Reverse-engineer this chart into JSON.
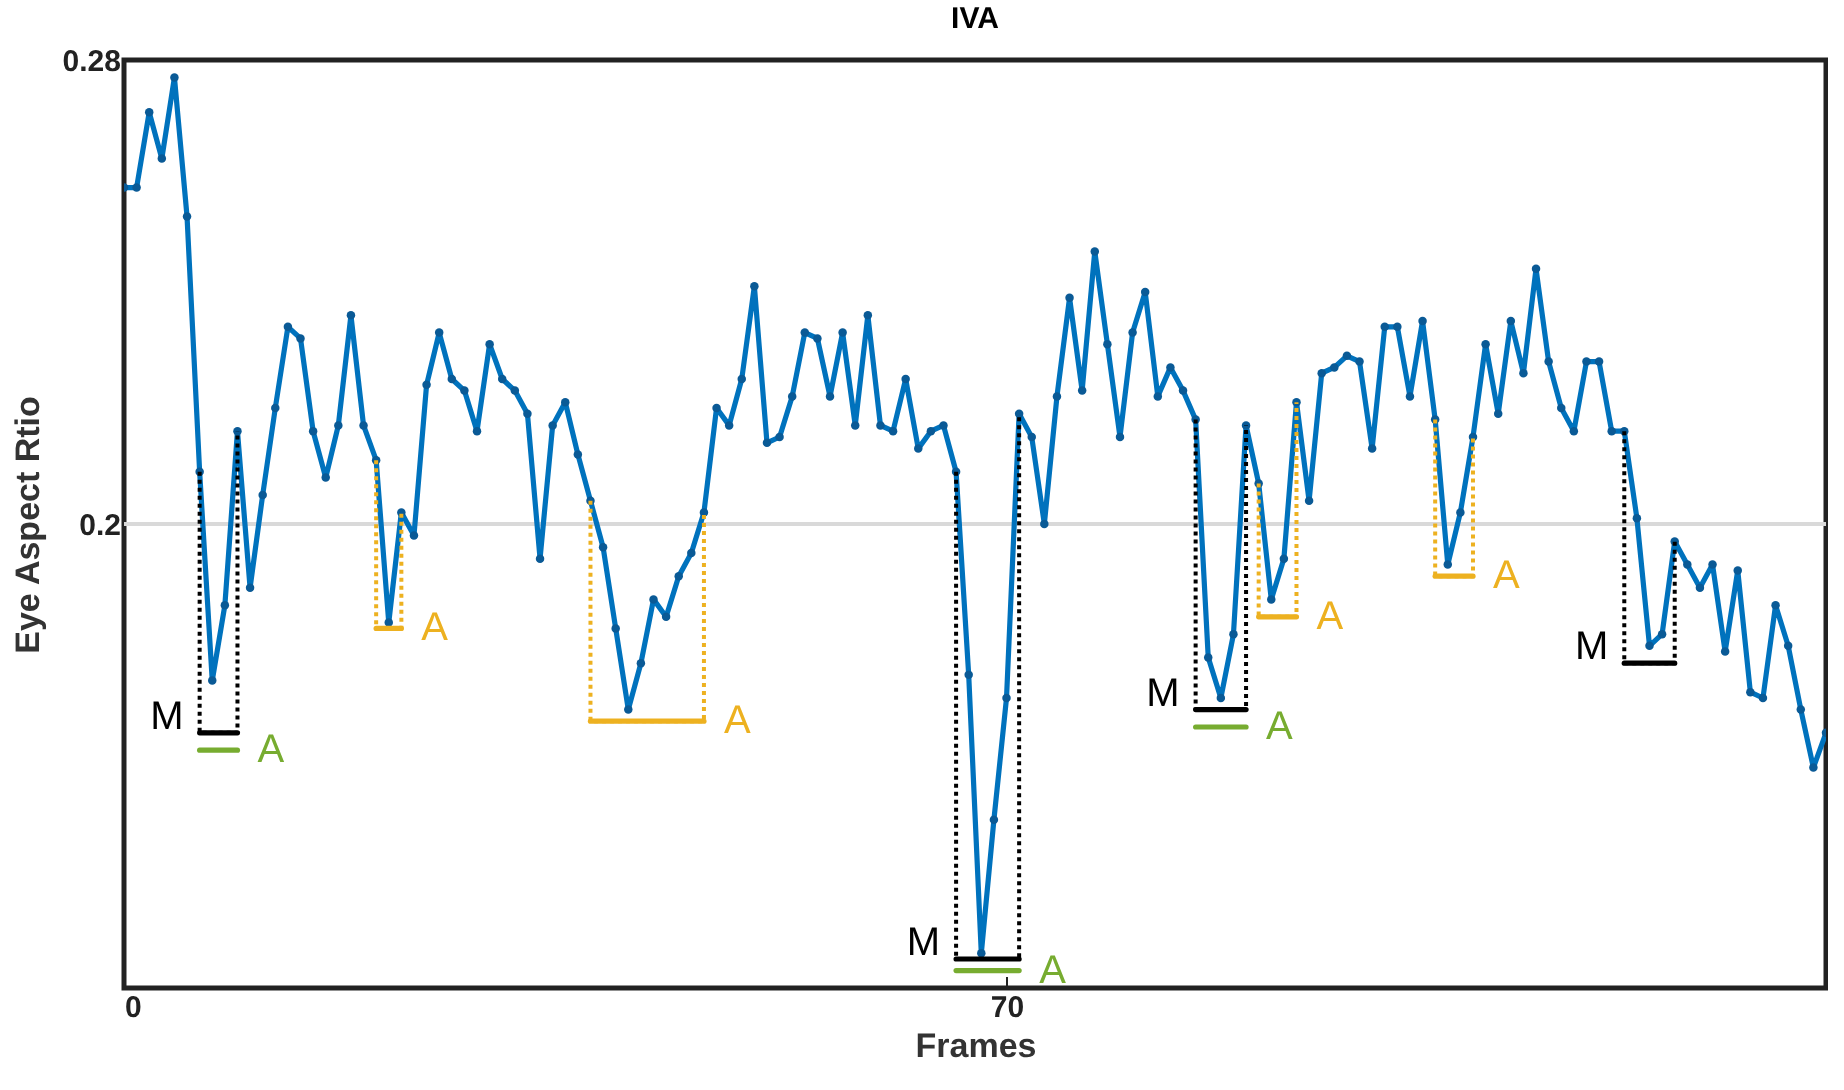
{
  "chart_data": {
    "type": "line",
    "title": "IVA",
    "xlabel": "Frames",
    "ylabel": "Eye Aspect Rtio",
    "x": [
      0,
      1,
      2,
      3,
      4,
      5,
      6,
      7,
      8,
      9,
      10,
      11,
      12,
      13,
      14,
      15,
      16,
      17,
      18,
      19,
      20,
      21,
      22,
      23,
      24,
      25,
      26,
      27,
      28,
      29,
      30,
      31,
      32,
      33,
      34,
      35,
      36,
      37,
      38,
      39,
      40,
      41,
      42,
      43,
      44,
      45,
      46,
      47,
      48,
      49,
      50,
      51,
      52,
      53,
      54,
      55,
      56,
      57,
      58,
      59,
      60,
      61,
      62,
      63,
      64,
      65,
      66,
      67,
      68,
      69,
      70,
      71,
      72,
      73,
      74,
      75,
      76,
      77,
      78,
      79,
      80,
      81,
      82,
      83,
      84,
      85,
      86,
      87,
      88,
      89,
      90,
      91,
      92,
      93,
      94,
      95,
      96,
      97,
      98,
      99,
      100,
      101,
      102,
      103,
      104,
      105,
      106,
      107,
      108,
      109,
      110,
      111,
      112,
      113,
      114,
      115,
      116,
      117,
      118,
      119,
      120,
      121,
      122,
      123,
      124,
      125,
      126,
      127,
      128,
      129,
      130,
      131,
      132,
      133,
      134,
      135
    ],
    "series": [
      {
        "color": "#0072bd",
        "values": [
          0.258,
          0.258,
          0.271,
          0.263,
          0.277,
          0.253,
          0.209,
          0.173,
          0.186,
          0.216,
          0.189,
          0.205,
          0.22,
          0.234,
          0.232,
          0.216,
          0.208,
          0.217,
          0.236,
          0.217,
          0.211,
          0.183,
          0.202,
          0.198,
          0.224,
          0.233,
          0.225,
          0.223,
          0.216,
          0.231,
          0.225,
          0.223,
          0.219,
          0.194,
          0.217,
          0.221,
          0.212,
          0.204,
          0.196,
          0.182,
          0.168,
          0.176,
          0.187,
          0.184,
          0.191,
          0.195,
          0.202,
          0.22,
          0.217,
          0.225,
          0.241,
          0.214,
          0.215,
          0.222,
          0.233,
          0.232,
          0.222,
          0.233,
          0.217,
          0.236,
          0.217,
          0.216,
          0.225,
          0.213,
          0.216,
          0.217,
          0.209,
          0.174,
          0.126,
          0.149,
          0.17,
          0.219,
          0.215,
          0.2,
          0.222,
          0.239,
          0.223,
          0.247,
          0.231,
          0.215,
          0.233,
          0.24,
          0.222,
          0.227,
          0.223,
          0.218,
          0.177,
          0.17,
          0.181,
          0.217,
          0.207,
          0.187,
          0.194,
          0.221,
          0.204,
          0.226,
          0.227,
          0.229,
          0.228,
          0.213,
          0.234,
          0.234,
          0.222,
          0.235,
          0.218,
          0.193,
          0.202,
          0.215,
          0.231,
          0.219,
          0.235,
          0.226,
          0.244,
          0.228,
          0.22,
          0.216,
          0.228,
          0.228,
          0.216,
          0.216,
          0.201,
          0.179,
          0.181,
          0.197,
          0.193,
          0.189,
          0.193,
          0.178,
          0.192,
          0.171,
          0.17,
          0.186,
          0.179,
          0.168,
          0.158,
          0.164
        ]
      },
      {
        "color": "#000000",
        "line_style": "dotted",
        "marker": "none",
        "x": [
          6,
          6,
          9,
          9
        ],
        "values": [
          0.209,
          0.164,
          0.164,
          0.216
        ]
      },
      {
        "color": "#000000",
        "marker": "none",
        "x": [
          6,
          9
        ],
        "values": [
          0.164,
          0.164
        ]
      },
      {
        "color": "#77ac30",
        "marker": "none",
        "x": [
          6,
          9
        ],
        "values": [
          0.161,
          0.161
        ]
      },
      {
        "color": "#edb120",
        "line_style": "dotted",
        "marker": "none",
        "x": [
          20,
          20,
          22,
          22
        ],
        "values": [
          0.211,
          0.182,
          0.182,
          0.202
        ]
      },
      {
        "color": "#edb120",
        "marker": "none",
        "x": [
          20,
          22
        ],
        "values": [
          0.182,
          0.182
        ]
      },
      {
        "color": "#edb120",
        "line_style": "dotted",
        "marker": "none",
        "x": [
          37,
          37,
          46,
          46
        ],
        "values": [
          0.204,
          0.166,
          0.166,
          0.202
        ]
      },
      {
        "color": "#edb120",
        "marker": "none",
        "x": [
          37,
          46
        ],
        "values": [
          0.166,
          0.166
        ]
      },
      {
        "color": "#000000",
        "line_style": "dotted",
        "marker": "none",
        "x": [
          66,
          66,
          71,
          71
        ],
        "values": [
          0.209,
          0.125,
          0.125,
          0.219
        ]
      },
      {
        "color": "#000000",
        "marker": "none",
        "x": [
          66,
          71
        ],
        "values": [
          0.125,
          0.125
        ]
      },
      {
        "color": "#77ac30",
        "marker": "none",
        "x": [
          66,
          71
        ],
        "values": [
          0.123,
          0.123
        ]
      },
      {
        "color": "#000000",
        "line_style": "dotted",
        "marker": "none",
        "x": [
          85,
          85,
          89,
          89
        ],
        "values": [
          0.218,
          0.168,
          0.168,
          0.217
        ]
      },
      {
        "color": "#000000",
        "marker": "none",
        "x": [
          85,
          89
        ],
        "values": [
          0.168,
          0.168
        ]
      },
      {
        "color": "#77ac30",
        "marker": "none",
        "x": [
          85,
          89
        ],
        "values": [
          0.165,
          0.165
        ]
      },
      {
        "color": "#edb120",
        "line_style": "dotted",
        "marker": "none",
        "x": [
          90,
          90,
          93,
          93
        ],
        "values": [
          0.207,
          0.184,
          0.184,
          0.221
        ]
      },
      {
        "color": "#edb120",
        "marker": "none",
        "x": [
          90,
          93
        ],
        "values": [
          0.184,
          0.184
        ]
      },
      {
        "color": "#edb120",
        "line_style": "dotted",
        "marker": "none",
        "x": [
          104,
          104,
          107,
          107
        ],
        "values": [
          0.218,
          0.191,
          0.191,
          0.215
        ]
      },
      {
        "color": "#edb120",
        "marker": "none",
        "x": [
          104,
          107
        ],
        "values": [
          0.191,
          0.191
        ]
      },
      {
        "color": "#000000",
        "line_style": "dotted",
        "marker": "none",
        "x": [
          119,
          119,
          123,
          123
        ],
        "values": [
          0.216,
          0.176,
          0.176,
          0.197
        ]
      },
      {
        "color": "#000000",
        "marker": "none",
        "x": [
          119,
          123
        ],
        "values": [
          0.176,
          0.176
        ]
      }
    ],
    "annotations": [
      {
        "text": "M",
        "x": 6,
        "y": 0.164
      },
      {
        "text": "A",
        "x": 9,
        "y": 0.161
      },
      {
        "text": "A",
        "x": 22,
        "y": 0.182
      },
      {
        "text": "A",
        "x": 46,
        "y": 0.166
      },
      {
        "text": "M",
        "x": 66,
        "y": 0.125
      },
      {
        "text": "A",
        "x": 71,
        "y": 0.123
      },
      {
        "text": "M",
        "x": 85,
        "y": 0.168
      },
      {
        "text": "A",
        "x": 89,
        "y": 0.165
      },
      {
        "text": "A",
        "x": 93,
        "y": 0.184
      },
      {
        "text": "A",
        "x": 107,
        "y": 0.191
      },
      {
        "text": "M",
        "x": 119,
        "y": 0.176
      }
    ],
    "ref_lines": [
      {
        "axis": "y",
        "value": 0.2,
        "color": "#d9d9d9"
      }
    ],
    "xlim": [
      0,
      135
    ],
    "ylim": [
      0.12,
      0.28
    ],
    "xticks": [
      0,
      70
    ],
    "yticks": [
      0.2,
      0.28
    ],
    "marker": "circle",
    "line_style": "solid",
    "grid": false
  }
}
